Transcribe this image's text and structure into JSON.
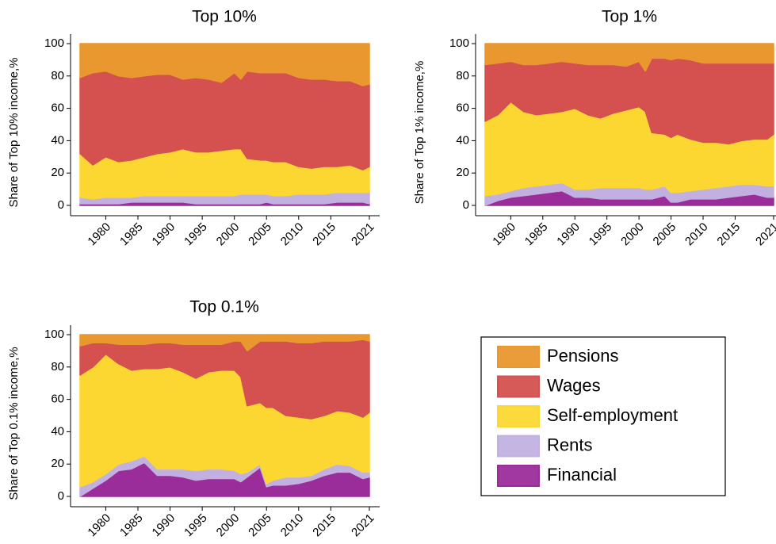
{
  "chart_data": [
    {
      "type": "stacked_area",
      "title": "Top 10%",
      "y_label": "Share of Top 10% income,%",
      "x": [
        1976,
        1978,
        1980,
        1982,
        1984,
        1986,
        1988,
        1990,
        1992,
        1994,
        1996,
        1998,
        2000,
        2001,
        2002,
        2004,
        2005,
        2006,
        2008,
        2010,
        2012,
        2014,
        2016,
        2018,
        2020,
        2021
      ],
      "xlim": [
        1976,
        2021
      ],
      "xticks": [
        1980,
        1985,
        1990,
        1995,
        2000,
        2005,
        2010,
        2015,
        2021
      ],
      "ylim": [
        0,
        100
      ],
      "yticks": [
        0,
        20,
        40,
        60,
        80,
        100
      ],
      "grid": true,
      "series": [
        {
          "name": "Financial",
          "color": "#9b2d9b",
          "values": [
            1,
            1,
            1,
            1,
            2,
            2,
            2,
            2,
            2,
            1,
            1,
            1,
            1,
            1,
            1,
            1,
            2,
            1,
            1,
            1,
            1,
            1,
            2,
            2,
            2,
            1
          ]
        },
        {
          "name": "Rents",
          "color": "#c2b1e0",
          "values": [
            4,
            3,
            4,
            4,
            3,
            4,
            4,
            4,
            4,
            5,
            5,
            5,
            5,
            6,
            6,
            6,
            5,
            5,
            5,
            6,
            6,
            6,
            6,
            6,
            6,
            7
          ]
        },
        {
          "name": "Self-employment",
          "color": "#fcd731",
          "values": [
            27,
            21,
            25,
            22,
            23,
            24,
            26,
            27,
            29,
            27,
            27,
            28,
            29,
            28,
            22,
            21,
            21,
            21,
            21,
            17,
            16,
            17,
            16,
            17,
            14,
            16
          ]
        },
        {
          "name": "Wages",
          "color": "#d4514f",
          "values": [
            47,
            57,
            53,
            53,
            51,
            50,
            49,
            48,
            43,
            46,
            45,
            42,
            47,
            43,
            54,
            54,
            54,
            55,
            55,
            55,
            55,
            54,
            53,
            52,
            52,
            51
          ]
        },
        {
          "name": "Pensions",
          "color": "#e9972f",
          "values": [
            21,
            18,
            17,
            20,
            21,
            20,
            19,
            19,
            22,
            21,
            22,
            24,
            18,
            22,
            17,
            18,
            18,
            18,
            18,
            21,
            22,
            22,
            23,
            23,
            26,
            25
          ]
        }
      ]
    },
    {
      "type": "stacked_area",
      "title": "Top 1%",
      "y_label": "Share of Top 1% income,%",
      "x": [
        1976,
        1978,
        1980,
        1982,
        1984,
        1986,
        1988,
        1990,
        1992,
        1994,
        1996,
        1998,
        2000,
        2001,
        2002,
        2004,
        2005,
        2006,
        2008,
        2010,
        2012,
        2014,
        2016,
        2018,
        2020,
        2021
      ],
      "xlim": [
        1976,
        2021
      ],
      "xticks": [
        1980,
        1985,
        1990,
        1995,
        2000,
        2005,
        2010,
        2015,
        2021
      ],
      "ylim": [
        0,
        100
      ],
      "yticks": [
        0,
        20,
        40,
        60,
        80,
        100
      ],
      "grid": true,
      "series": [
        {
          "name": "Financial",
          "color": "#9b2d9b",
          "values": [
            0,
            3,
            5,
            6,
            7,
            8,
            9,
            5,
            5,
            4,
            4,
            4,
            4,
            4,
            4,
            6,
            2,
            2,
            4,
            4,
            4,
            5,
            6,
            7,
            5,
            5
          ]
        },
        {
          "name": "Rents",
          "color": "#c2b1e0",
          "values": [
            6,
            4,
            4,
            5,
            5,
            5,
            5,
            5,
            5,
            7,
            7,
            7,
            7,
            6,
            6,
            6,
            6,
            6,
            5,
            6,
            7,
            7,
            7,
            6,
            7,
            7
          ]
        },
        {
          "name": "Self-employment",
          "color": "#fcd731",
          "values": [
            46,
            49,
            55,
            47,
            44,
            44,
            44,
            50,
            46,
            43,
            46,
            48,
            50,
            48,
            35,
            32,
            34,
            36,
            32,
            29,
            28,
            26,
            27,
            28,
            29,
            32
          ]
        },
        {
          "name": "Wages",
          "color": "#d4514f",
          "values": [
            35,
            32,
            25,
            29,
            31,
            31,
            31,
            28,
            31,
            33,
            30,
            27,
            28,
            25,
            46,
            47,
            48,
            47,
            49,
            49,
            49,
            50,
            48,
            47,
            47,
            44
          ]
        },
        {
          "name": "Pensions",
          "color": "#e9972f",
          "values": [
            13,
            12,
            11,
            13,
            13,
            12,
            11,
            12,
            13,
            13,
            13,
            14,
            11,
            17,
            9,
            9,
            10,
            9,
            10,
            12,
            12,
            12,
            12,
            12,
            12,
            12
          ]
        }
      ]
    },
    {
      "type": "stacked_area",
      "title": "Top 0.1%",
      "y_label": "Share of Top 0.1% income,%",
      "x": [
        1976,
        1978,
        1980,
        1982,
        1984,
        1986,
        1988,
        1990,
        1992,
        1994,
        1996,
        1998,
        2000,
        2001,
        2002,
        2004,
        2005,
        2006,
        2008,
        2010,
        2012,
        2014,
        2016,
        2018,
        2020,
        2021
      ],
      "xlim": [
        1976,
        2021
      ],
      "xticks": [
        1980,
        1985,
        1990,
        1995,
        2000,
        2005,
        2010,
        2015,
        2021
      ],
      "ylim": [
        0,
        100
      ],
      "yticks": [
        0,
        20,
        40,
        60,
        80,
        100
      ],
      "grid": true,
      "series": [
        {
          "name": "Financial",
          "color": "#9b2d9b",
          "values": [
            0,
            5,
            10,
            16,
            17,
            21,
            13,
            13,
            12,
            10,
            11,
            11,
            11,
            9,
            12,
            18,
            6,
            7,
            7,
            8,
            10,
            13,
            15,
            15,
            11,
            12
          ]
        },
        {
          "name": "Rents",
          "color": "#c2b1e0",
          "values": [
            6,
            4,
            4,
            4,
            5,
            4,
            4,
            4,
            5,
            6,
            6,
            6,
            5,
            5,
            3,
            2,
            2,
            3,
            5,
            4,
            3,
            4,
            5,
            4,
            4,
            3
          ]
        },
        {
          "name": "Self-employment",
          "color": "#fcd731",
          "values": [
            69,
            71,
            74,
            62,
            56,
            54,
            62,
            63,
            60,
            57,
            60,
            61,
            62,
            60,
            41,
            38,
            47,
            45,
            38,
            37,
            35,
            33,
            33,
            33,
            34,
            37
          ]
        },
        {
          "name": "Wages",
          "color": "#d4514f",
          "values": [
            18,
            15,
            7,
            12,
            16,
            15,
            16,
            15,
            17,
            21,
            17,
            16,
            18,
            22,
            34,
            38,
            41,
            41,
            46,
            46,
            47,
            46,
            43,
            44,
            48,
            44
          ]
        },
        {
          "name": "Pensions",
          "color": "#e9972f",
          "values": [
            7,
            5,
            5,
            6,
            6,
            6,
            5,
            5,
            6,
            6,
            6,
            6,
            4,
            4,
            10,
            4,
            4,
            4,
            4,
            5,
            5,
            4,
            4,
            4,
            3,
            4
          ]
        }
      ]
    }
  ]
}
